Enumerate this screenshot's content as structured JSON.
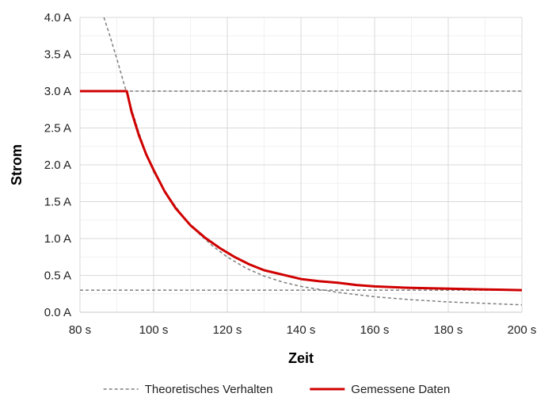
{
  "chart_data": {
    "type": "line",
    "xlabel": "Zeit",
    "ylabel": "Strom",
    "xlim": [
      80,
      200
    ],
    "ylim": [
      0,
      4
    ],
    "x_ticks": [
      80,
      100,
      120,
      140,
      160,
      180,
      200
    ],
    "y_ticks": [
      0,
      0.5,
      1.0,
      1.5,
      2.0,
      2.5,
      3.0,
      3.5,
      4.0
    ],
    "x_tick_labels": [
      "80 s",
      "100 s",
      "120 s",
      "140 s",
      "160 s",
      "180 s",
      "200 s"
    ],
    "y_tick_labels": [
      "0.0 A",
      "0.5 A",
      "1.0 A",
      "1.5 A",
      "2.0 A",
      "2.5 A",
      "3.0 A",
      "3.5 A",
      "4.0 A"
    ],
    "grid": true,
    "legend_position": "bottom",
    "series": [
      {
        "name": "Theoretisches Verhalten",
        "style": "dashed",
        "color": "#7f7f7f",
        "x": [
          86.5,
          88,
          90,
          92,
          94,
          96,
          98,
          100,
          104,
          108,
          112,
          116,
          120,
          125,
          130,
          135,
          140,
          145,
          150,
          160,
          170,
          180,
          190,
          200
        ],
        "y": [
          4.0,
          3.77,
          3.44,
          3.09,
          2.76,
          2.44,
          2.15,
          1.9,
          1.57,
          1.3,
          1.08,
          0.9,
          0.75,
          0.6,
          0.49,
          0.41,
          0.35,
          0.31,
          0.27,
          0.21,
          0.17,
          0.14,
          0.12,
          0.1
        ]
      },
      {
        "name": "",
        "style": "dashed",
        "color": "#7f7f7f",
        "x": [
          80,
          200
        ],
        "y": [
          3.0,
          3.0
        ]
      },
      {
        "name": "",
        "style": "dashed",
        "color": "#7f7f7f",
        "x": [
          80,
          200
        ],
        "y": [
          0.3,
          0.3
        ]
      },
      {
        "name": "Gemessene Daten",
        "style": "solid",
        "color": "#d00000",
        "x": [
          80,
          92.7,
          94,
          96,
          98,
          100,
          103,
          106,
          110,
          114,
          118,
          122,
          126,
          130,
          135,
          140,
          145,
          150,
          155,
          160,
          170,
          180,
          190,
          200
        ],
        "y": [
          3.0,
          3.0,
          2.72,
          2.4,
          2.14,
          1.93,
          1.64,
          1.41,
          1.18,
          1.01,
          0.87,
          0.75,
          0.65,
          0.57,
          0.51,
          0.45,
          0.42,
          0.4,
          0.37,
          0.35,
          0.33,
          0.32,
          0.31,
          0.3
        ]
      }
    ]
  }
}
